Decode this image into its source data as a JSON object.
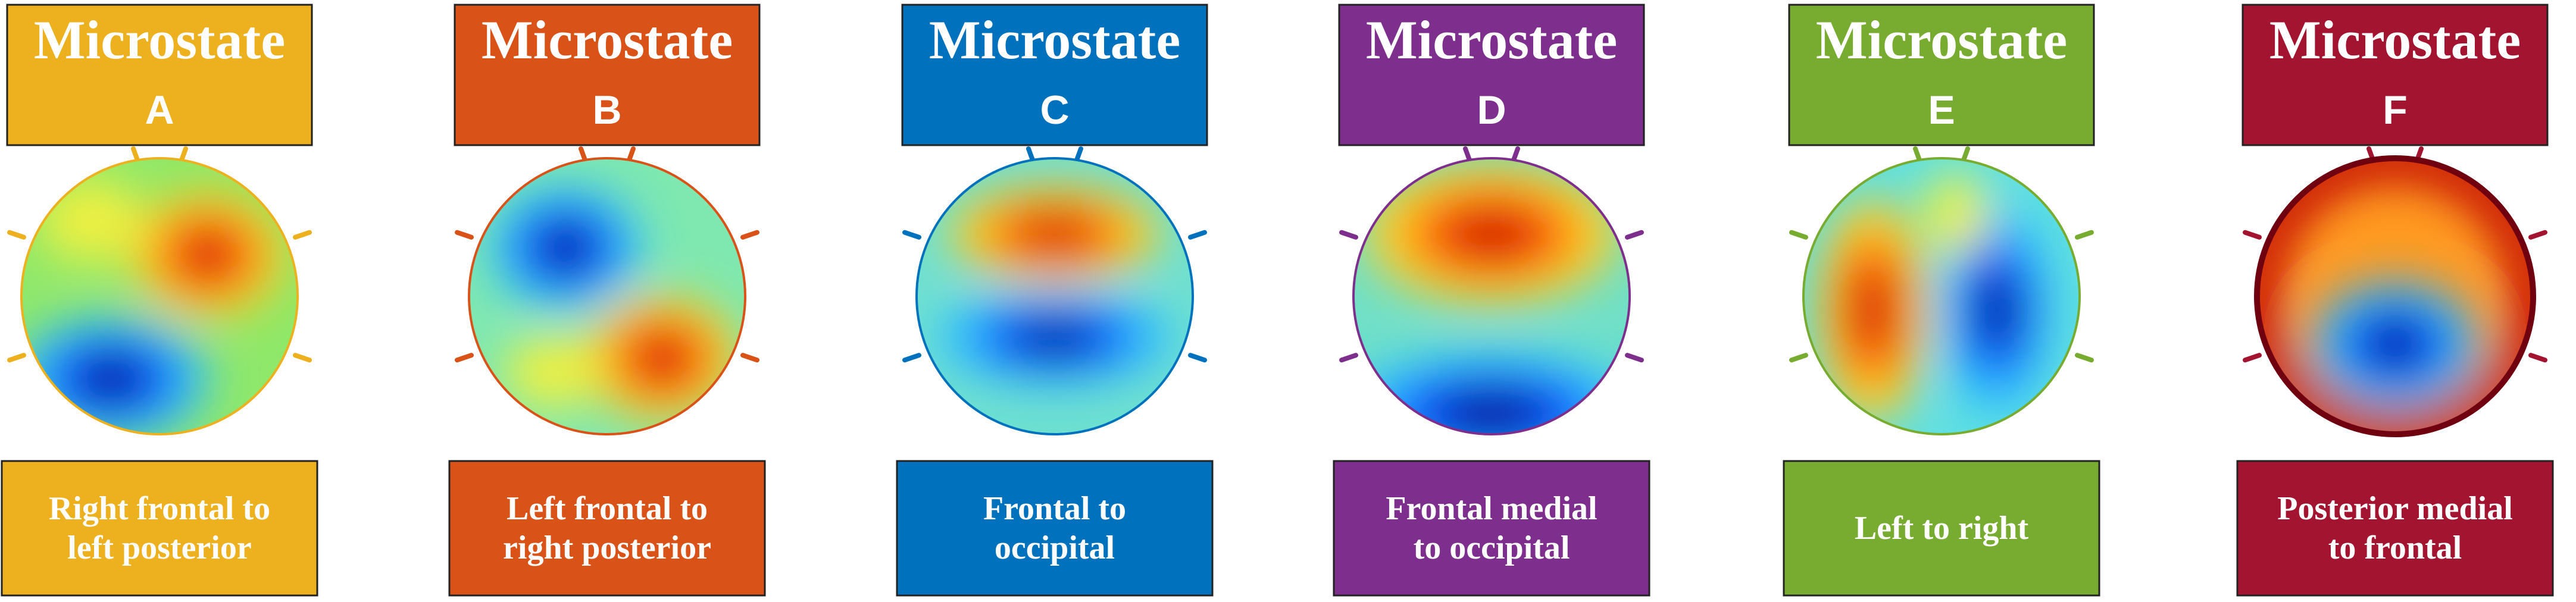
{
  "microstates": [
    {
      "title": "Microstate",
      "letter": "A",
      "color": "#EDB120",
      "description": [
        "Right frontal to",
        "left posterior"
      ]
    },
    {
      "title": "Microstate",
      "letter": "B",
      "color": "#D95319",
      "description": [
        "Left frontal to",
        "right posterior"
      ]
    },
    {
      "title": "Microstate",
      "letter": "C",
      "color": "#0072BD",
      "description": [
        "Frontal to",
        "occipital"
      ]
    },
    {
      "title": "Microstate",
      "letter": "D",
      "color": "#7E2F8E",
      "description": [
        "Frontal medial",
        "to occipital"
      ]
    },
    {
      "title": "Microstate",
      "letter": "E",
      "color": "#77AC30",
      "description": [
        "Left to right"
      ]
    },
    {
      "title": "Microstate",
      "letter": "F",
      "color": "#A2142F",
      "description": [
        "Posterior medial",
        "to frontal"
      ]
    }
  ]
}
